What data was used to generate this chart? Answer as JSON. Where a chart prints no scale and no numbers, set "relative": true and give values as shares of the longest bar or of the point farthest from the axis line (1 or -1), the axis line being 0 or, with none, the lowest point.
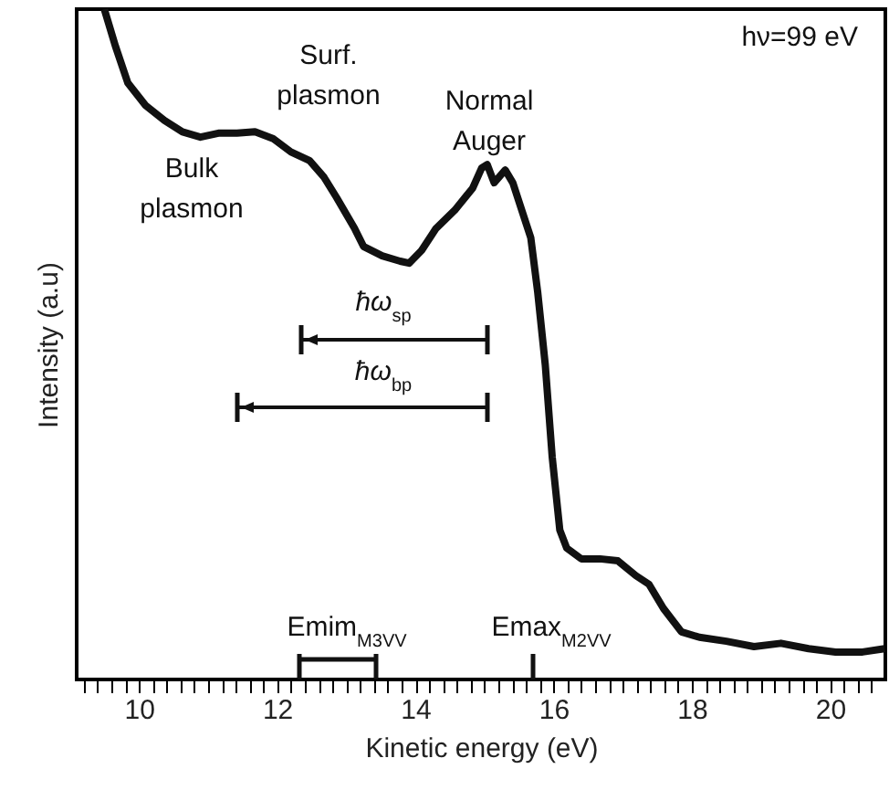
{
  "chart_data": {
    "type": "line",
    "relative": true,
    "xlabel": "Kinetic energy (eV)",
    "ylabel": "Intensity (a.u)",
    "xlim": [
      9.1,
      20.8
    ],
    "xticks": [
      {
        "value": 9.2,
        "label": null
      },
      {
        "value": 9.4,
        "label": null
      },
      {
        "value": 9.6,
        "label": null
      },
      {
        "value": 9.8,
        "label": null
      },
      10,
      {
        "value": 10.2,
        "label": null
      },
      {
        "value": 10.4,
        "label": null
      },
      {
        "value": 10.6,
        "label": null
      },
      {
        "value": 10.8,
        "label": null
      },
      {
        "value": 11,
        "label": null
      },
      {
        "value": 11.2,
        "label": null
      },
      {
        "value": 11.4,
        "label": null
      },
      {
        "value": 11.6,
        "label": null
      },
      {
        "value": 11.8,
        "label": null
      },
      12,
      {
        "value": 12.2,
        "label": null
      },
      {
        "value": 12.4,
        "label": null
      },
      {
        "value": 12.6,
        "label": null
      },
      {
        "value": 12.8,
        "label": null
      },
      {
        "value": 13,
        "label": null
      },
      {
        "value": 13.2,
        "label": null
      },
      {
        "value": 13.4,
        "label": null
      },
      {
        "value": 13.6,
        "label": null
      },
      {
        "value": 13.8,
        "label": null
      },
      14,
      {
        "value": 14.2,
        "label": null
      },
      {
        "value": 14.4,
        "label": null
      },
      {
        "value": 14.6,
        "label": null
      },
      {
        "value": 14.8,
        "label": null
      },
      {
        "value": 15,
        "label": null
      },
      {
        "value": 15.2,
        "label": null
      },
      {
        "value": 15.4,
        "label": null
      },
      {
        "value": 15.6,
        "label": null
      },
      {
        "value": 15.8,
        "label": null
      },
      16,
      {
        "value": 16.2,
        "label": null
      },
      {
        "value": 16.4,
        "label": null
      },
      {
        "value": 16.6,
        "label": null
      },
      {
        "value": 16.8,
        "label": null
      },
      {
        "value": 17,
        "label": null
      },
      {
        "value": 17.2,
        "label": null
      },
      {
        "value": 17.4,
        "label": null
      },
      {
        "value": 17.6,
        "label": null
      },
      {
        "value": 17.8,
        "label": null
      },
      18,
      {
        "value": 18.2,
        "label": null
      },
      {
        "value": 18.4,
        "label": null
      },
      {
        "value": 18.6,
        "label": null
      },
      {
        "value": 18.8,
        "label": null
      },
      {
        "value": 19,
        "label": null
      },
      {
        "value": 19.2,
        "label": null
      },
      {
        "value": 19.4,
        "label": null
      },
      {
        "value": 19.6,
        "label": null
      },
      {
        "value": 19.8,
        "label": null
      },
      20,
      {
        "value": 20.2,
        "label": null
      },
      {
        "value": 20.4,
        "label": null
      },
      {
        "value": 20.6,
        "label": null
      }
    ],
    "x": [
      9.5,
      9.66,
      9.84,
      10.1,
      10.37,
      10.63,
      10.89,
      11.15,
      11.42,
      11.68,
      11.94,
      12.2,
      12.47,
      12.68,
      12.86,
      13.12,
      13.25,
      13.52,
      13.78,
      13.91,
      14.09,
      14.3,
      14.57,
      14.83,
      14.96,
      15.04,
      15.14,
      15.3,
      15.41,
      15.54,
      15.67,
      15.77,
      15.88,
      15.98,
      16.09,
      16.19,
      16.4,
      16.67,
      16.93,
      17.19,
      17.38,
      17.59,
      17.85,
      18.11,
      18.5,
      18.9,
      19.29,
      19.69,
      20.08,
      20.47,
      20.79
    ],
    "series": [
      {
        "color": "#111111",
        "values": [
          1.0,
          0.945,
          0.89,
          0.856,
          0.834,
          0.817,
          0.809,
          0.815,
          0.815,
          0.817,
          0.807,
          0.787,
          0.774,
          0.749,
          0.719,
          0.673,
          0.646,
          0.632,
          0.624,
          0.621,
          0.64,
          0.673,
          0.7,
          0.733,
          0.763,
          0.768,
          0.741,
          0.76,
          0.741,
          0.7,
          0.659,
          0.578,
          0.469,
          0.332,
          0.223,
          0.196,
          0.18,
          0.18,
          0.177,
          0.155,
          0.142,
          0.106,
          0.071,
          0.063,
          0.057,
          0.049,
          0.054,
          0.046,
          0.041,
          0.041,
          0.046
        ]
      }
    ],
    "annotations": [
      "Bulk plasmon",
      "Surf. plasmon",
      "Normal Auger",
      "hν=99 eV",
      "ħω$_{sp}$",
      "ħω$_{bp}$",
      "Emim$_{M3VV}$",
      "Emax$_{M2VV}$"
    ]
  }
}
